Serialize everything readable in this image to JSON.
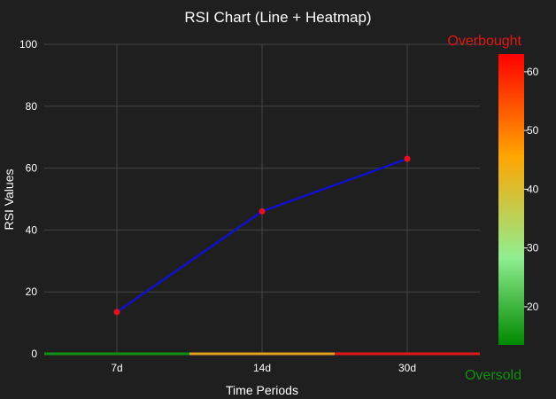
{
  "chart_data": {
    "type": "line",
    "title": "RSI Chart (Line + Heatmap)",
    "xlabel": "Time Periods",
    "ylabel": "RSI Values",
    "categories": [
      "7d",
      "14d",
      "30d"
    ],
    "series": [
      {
        "values": [
          13.5,
          46,
          63
        ],
        "line_color": "#1010c8",
        "marker_color": "#e8101a"
      }
    ],
    "ylim": [
      0,
      100
    ],
    "yticks": [
      0,
      20,
      40,
      60,
      80,
      100
    ],
    "grid": true,
    "heatmap": {
      "row_values": [
        13.5,
        46,
        63
      ],
      "row_colors": [
        "#109010",
        "#e0a020",
        "#e01818"
      ]
    },
    "colorbar": {
      "range": [
        13.5,
        63
      ],
      "ticks": [
        20,
        30,
        40,
        50,
        60
      ],
      "colorscale": [
        [
          0.0,
          "#008800"
        ],
        [
          0.3,
          "#90ee90"
        ],
        [
          0.65,
          "#ffa500"
        ],
        [
          1.0,
          "#ff0000"
        ]
      ]
    },
    "annotations": [
      {
        "text": "Overbought",
        "color": "#e01818",
        "placement": "top-right"
      },
      {
        "text": "Oversold",
        "color": "#109010",
        "placement": "bottom-right"
      }
    ]
  }
}
